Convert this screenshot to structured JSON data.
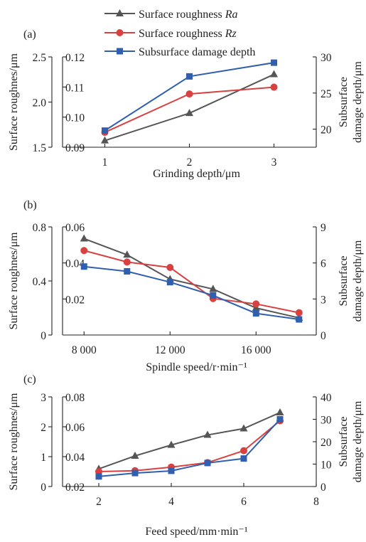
{
  "legend": {
    "position": "top",
    "entries": [
      {
        "prefix": "Surface roughness ",
        "italic": "Ra",
        "color": "#555555",
        "marker": "triangle"
      },
      {
        "prefix": "Surface roughness ",
        "italic": "Rz",
        "color": "#d94040",
        "marker": "circle"
      },
      {
        "prefix": "Subsurface damage depth",
        "italic": "",
        "color": "#2f5fae",
        "marker": "square"
      }
    ]
  },
  "chart_data": [
    {
      "type": "line",
      "panel_label": "(a)",
      "xlabel": "Grinding depth/μm",
      "ylabel_left": "Surface roughnes/μm",
      "ylabel_right_line1": "Subsurface",
      "ylabel_right_line2": "damage depth/μm",
      "xlim": [
        0.5,
        3.5
      ],
      "x_ticks": [
        1,
        2,
        3
      ],
      "x_tick_labels": [
        "1",
        "2",
        "3"
      ],
      "ylim_left_outer": [
        1.5,
        2.5
      ],
      "y_ticks_left_outer": [
        1.5,
        2.0,
        2.5
      ],
      "y_tick_labels_left_outer": [
        "1.5",
        "2.0",
        "2.5"
      ],
      "ylim_left_inner": [
        0.09,
        0.12
      ],
      "y_ticks_left_inner": [
        0.09,
        0.1,
        0.11,
        0.12
      ],
      "y_tick_labels_left_inner": [
        "0.09",
        "0.10",
        "0.11",
        "0.12"
      ],
      "ylim_right": [
        17.5,
        30
      ],
      "y_ticks_right": [
        20,
        25,
        30
      ],
      "y_tick_labels_right": [
        "20",
        "25",
        "30"
      ],
      "series": [
        {
          "name": "Surface roughness Ra",
          "axis": "left_inner",
          "x": [
            1,
            2,
            3
          ],
          "values": [
            0.0922,
            0.1013,
            0.1142
          ]
        },
        {
          "name": "Surface roughness Rz",
          "axis": "left_outer",
          "x": [
            1,
            2,
            3
          ],
          "values": [
            1.665,
            2.09,
            2.165
          ]
        },
        {
          "name": "Subsurface damage depth",
          "axis": "right",
          "x": [
            1,
            2,
            3
          ],
          "values": [
            19.8,
            27.3,
            29.2
          ]
        }
      ]
    },
    {
      "type": "line",
      "panel_label": "(b)",
      "xlabel": "Spindle speed/r·min⁻¹",
      "ylabel_left": "Surface roughnes/μm",
      "ylabel_right_line1": "Subsurface",
      "ylabel_right_line2": "damage depth/μm",
      "xlim": [
        7000,
        18800
      ],
      "x_ticks": [
        8000,
        12000,
        16000
      ],
      "x_tick_labels": [
        "8 000",
        "12 000",
        "16 000"
      ],
      "ylim_left_outer": [
        0,
        0.8
      ],
      "y_ticks_left_outer": [
        0,
        0.4,
        0.8
      ],
      "y_tick_labels_left_outer": [
        "0",
        "0.4",
        "0.8"
      ],
      "ylim_left_inner": [
        0,
        0.06
      ],
      "y_ticks_left_inner": [
        0.02,
        0.04,
        0.06
      ],
      "y_tick_labels_left_inner": [
        "0.02",
        "0.04",
        "0.06"
      ],
      "ylim_right": [
        0,
        9
      ],
      "y_ticks_right": [
        0,
        3,
        6,
        9
      ],
      "y_tick_labels_right": [
        "0",
        "3",
        "6",
        "9"
      ],
      "series": [
        {
          "name": "Surface roughness Ra",
          "axis": "left_inner",
          "x": [
            8000,
            10000,
            12000,
            14000,
            16000,
            18000
          ],
          "values": [
            0.0535,
            0.0445,
            0.031,
            0.0255,
            0.015,
            0.0095
          ]
        },
        {
          "name": "Surface roughness Rz",
          "axis": "left_outer",
          "x": [
            8000,
            10000,
            12000,
            14000,
            16000,
            18000
          ],
          "values": [
            0.625,
            0.54,
            0.5,
            0.27,
            0.23,
            0.165
          ]
        },
        {
          "name": "Subsurface damage depth",
          "axis": "right",
          "x": [
            8000,
            10000,
            12000,
            14000,
            16000,
            18000
          ],
          "values": [
            5.7,
            5.3,
            4.4,
            3.3,
            1.8,
            1.3
          ]
        }
      ]
    },
    {
      "type": "line",
      "panel_label": "(c)",
      "xlabel": "Feed speed/mm·min⁻¹",
      "ylabel_left": "Surface roughnes/μm",
      "ylabel_right_line1": "Subsurface",
      "ylabel_right_line2": "damage depth/μm",
      "xlim": [
        1,
        8
      ],
      "x_ticks": [
        2,
        4,
        6,
        8
      ],
      "x_tick_labels": [
        "2",
        "4",
        "6",
        "8"
      ],
      "ylim_left_outer": [
        0,
        3
      ],
      "y_ticks_left_outer": [
        0,
        1,
        2,
        3
      ],
      "y_tick_labels_left_outer": [
        "0",
        "1",
        "2",
        "3"
      ],
      "ylim_left_inner": [
        0.02,
        0.08
      ],
      "y_ticks_left_inner": [
        0.02,
        0.04,
        0.06,
        0.08
      ],
      "y_tick_labels_left_inner": [
        "0.02",
        "0.04",
        "0.06",
        "0.08"
      ],
      "ylim_right": [
        0,
        40
      ],
      "y_ticks_right": [
        0,
        10,
        20,
        30,
        40
      ],
      "y_tick_labels_right": [
        "0",
        "10",
        "20",
        "30",
        "40"
      ],
      "series": [
        {
          "name": "Surface roughness Ra",
          "axis": "left_inner",
          "x": [
            2,
            3,
            4,
            5,
            6,
            7
          ],
          "values": [
            0.0318,
            0.0405,
            0.0478,
            0.0545,
            0.0588,
            0.0695
          ]
        },
        {
          "name": "Surface roughness Rz",
          "axis": "left_outer",
          "x": [
            2,
            3,
            4,
            5,
            6,
            7
          ],
          "values": [
            0.5,
            0.53,
            0.65,
            0.8,
            1.2,
            2.2
          ]
        },
        {
          "name": "Subsurface damage depth",
          "axis": "right",
          "x": [
            2,
            3,
            4,
            5,
            6,
            7
          ],
          "values": [
            4.5,
            6.0,
            7.0,
            10.5,
            12.5,
            30.0
          ]
        }
      ]
    }
  ]
}
